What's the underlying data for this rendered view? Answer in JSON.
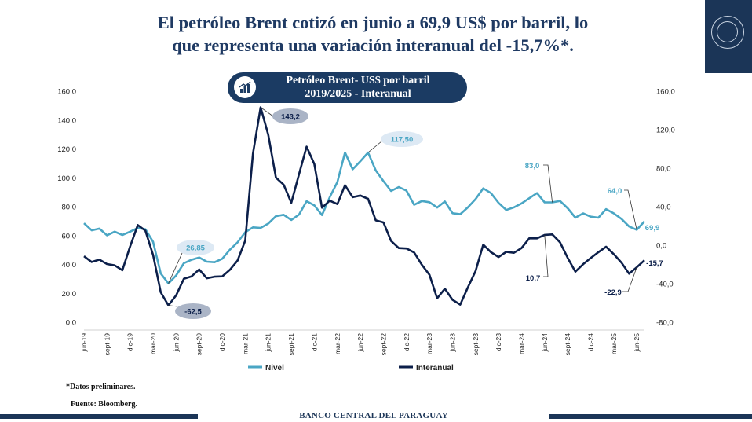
{
  "headline": {
    "line1": "El petróleo Brent cotizó en junio a 69,9 US$ por barril, lo",
    "line2": "que representa una variación interanual del -15,7%*."
  },
  "chart_data": {
    "type": "line",
    "title": "Petróleo Brent- US$ por barril",
    "subtitle": "2019/2025 - Interanual",
    "x_tick_labels": [
      "jun-19",
      "sept-19",
      "dic-19",
      "mar-20",
      "jun-20",
      "sept-20",
      "dic-20",
      "mar-21",
      "jun-21",
      "sept-21",
      "dic-21",
      "mar-22",
      "jun-22",
      "sept-22",
      "dic-22",
      "mar-23",
      "jun-23",
      "sept-23",
      "dic-23",
      "mar-24",
      "jun-24",
      "sept-24",
      "dic-24",
      "mar-25",
      "jun-25"
    ],
    "y_left": {
      "ticks": [
        "0,0",
        "20,0",
        "40,0",
        "60,0",
        "80,0",
        "100,0",
        "120,0",
        "140,0",
        "160,0"
      ],
      "ylim": [
        0,
        160
      ]
    },
    "y_right": {
      "ticks": [
        "-80,0",
        "-40,0",
        "0,0",
        "40,0",
        "80,0",
        "120,0",
        "160,0"
      ],
      "ylim": [
        -80,
        160
      ]
    },
    "grid": false,
    "legend_position": "bottom",
    "series": [
      {
        "name": "Nivel",
        "axis": "left",
        "color": "#4aa6c4",
        "values": [
          68.5,
          63.6,
          64.8,
          60.2,
          62.7,
          60.4,
          62.7,
          65.2,
          64.4,
          55.7,
          33.7,
          26.85,
          32.4,
          40.8,
          43.2,
          44.8,
          41.9,
          41.5,
          43.9,
          50.2,
          55.3,
          62.3,
          65.7,
          65.3,
          68.3,
          73.4,
          74.4,
          70.8,
          74.5,
          83.8,
          80.9,
          74.2,
          86.5,
          97.1,
          117.5,
          105.9,
          111.5,
          117.5,
          105.1,
          97.7,
          90.9,
          93.6,
          91.1,
          81.3,
          83.9,
          83.1,
          79.4,
          83.6,
          75.5,
          74.8,
          79.5,
          85.2,
          92.7,
          89.4,
          82.6,
          77.7,
          79.5,
          82.3,
          85.9,
          89.4,
          83.0,
          83.0,
          84.0,
          78.9,
          72.4,
          75.4,
          73.1,
          72.4,
          78.3,
          75.4,
          71.5,
          66.3,
          64.0,
          69.9
        ]
      },
      {
        "name": "Interanual",
        "axis": "right",
        "color": "#0c1f4a",
        "values": [
          -11.5,
          -17.5,
          -15.0,
          -19.6,
          -21.0,
          -26.0,
          -1.5,
          20.9,
          15.1,
          -10.1,
          -49.0,
          -62.5,
          -52.1,
          -34.9,
          -32.5,
          -25.2,
          -34.4,
          -32.7,
          -32.4,
          -25.6,
          -16.0,
          4.7,
          94.9,
          143.2,
          114.8,
          70.2,
          62.9,
          44.1,
          73.6,
          102.4,
          84.3,
          38.9,
          46.3,
          42.7,
          62.3,
          49.9,
          51.6,
          48.2,
          25.8,
          23.7,
          4.4,
          -3.0,
          -3.4,
          -7.6,
          -20.3,
          -30.8,
          -55.2,
          -45.2,
          -56.7,
          -61.7,
          -43.9,
          -27.0,
          0.6,
          -7.3,
          -12.3,
          -6.9,
          -7.9,
          -2.9,
          7.2,
          7.1,
          10.7,
          11.2,
          3.0,
          -13.2,
          -27.5,
          -19.8,
          -13.4,
          -7.3,
          -1.6,
          -9.3,
          -18.1,
          -29.6,
          -22.9,
          -15.7
        ]
      }
    ],
    "annotations": [
      {
        "series": "Nivel",
        "text": "26,85"
      },
      {
        "series": "Interanual",
        "text": "-62,5"
      },
      {
        "series": "Interanual",
        "text": "143,2"
      },
      {
        "series": "Nivel",
        "text": "117,50"
      },
      {
        "series": "Nivel",
        "text": "83,0"
      },
      {
        "series": "Nivel",
        "text": "64,0"
      },
      {
        "series": "Nivel",
        "text": "69,9"
      },
      {
        "series": "Interanual",
        "text": "10,7"
      },
      {
        "series": "Interanual",
        "text": "-22,9"
      },
      {
        "series": "Interanual",
        "text": "-15,7"
      }
    ]
  },
  "notes": {
    "preliminary": "*Datos preliminares.",
    "source": "Fuente: Bloomberg."
  },
  "footer": {
    "institution": "BANCO CENTRAL DEL PARAGUAY"
  },
  "logo": {
    "icon": "bcp-seal-icon"
  },
  "pill_icon": "bar-chart-icon"
}
